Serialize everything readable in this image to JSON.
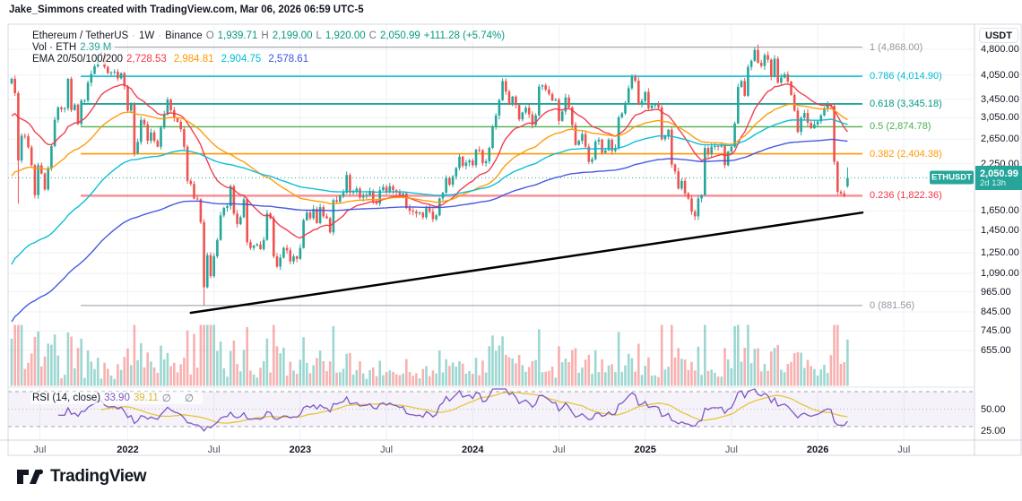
{
  "attribution": "Jake_Simmons created with TradingView.com, Mar 06, 2026 06:59 UTC-5",
  "symbol_row": {
    "title": "Ethereum / TetherUS",
    "dot1": "·",
    "interval": "1W",
    "dot2": "·",
    "exchange": "Binance",
    "o_label": "O",
    "o": "1,939.71",
    "h_label": "H",
    "h": "2,199.00",
    "l_label": "L",
    "l": "1,920.00",
    "c_label": "C",
    "c": "2,050.99",
    "change": "+111.28 (+5.74%)"
  },
  "vol_row": {
    "label": "Vol · ETH",
    "value": "2.39 M",
    "value_color": "#26a69a"
  },
  "ema_row": {
    "label": "EMA 20/50/100/200",
    "values": [
      {
        "text": "2,728.53",
        "color": "#f23645",
        "period": 20
      },
      {
        "text": "2,984.81",
        "color": "#ff9800",
        "period": 50
      },
      {
        "text": "2,904.75",
        "color": "#00bcd4",
        "period": 100
      },
      {
        "text": "2,578.61",
        "color": "#3d51e0",
        "period": 200
      }
    ]
  },
  "rsi_row": {
    "label": "RSI (14, close)",
    "value": "33.90",
    "ma": "39.11",
    "empty": "∅ ∅"
  },
  "price_scale": {
    "currency": "USDT",
    "flag": "ETHUSDT",
    "badge": {
      "price": "2,050.99",
      "countdown": "2d 13h"
    },
    "ticks": [
      {
        "v": 4800,
        "label": "4,800.00"
      },
      {
        "v": 4050,
        "label": "4,050.00"
      },
      {
        "v": 3450,
        "label": "3,450.00"
      },
      {
        "v": 3050,
        "label": "3,050.00"
      },
      {
        "v": 2650,
        "label": "2,650.00"
      },
      {
        "v": 2250,
        "label": "2,250.00"
      },
      {
        "v": 1650,
        "label": "1,650.00"
      },
      {
        "v": 1450,
        "label": "1,450.00"
      },
      {
        "v": 1250,
        "label": "1,250.00"
      },
      {
        "v": 1090,
        "label": "1,090.00"
      },
      {
        "v": 965,
        "label": "965.00"
      },
      {
        "v": 845,
        "label": "845.00"
      },
      {
        "v": 745,
        "label": "745.00"
      },
      {
        "v": 655,
        "label": "655.00"
      }
    ],
    "rsi_ticks": [
      {
        "v": 50,
        "label": "50.00"
      },
      {
        "v": 25,
        "label": "25.00"
      }
    ]
  },
  "time_scale": {
    "ticks": [
      {
        "label": "Jul",
        "week": 8.5,
        "bold": false
      },
      {
        "label": "2022",
        "week": 35,
        "bold": true
      },
      {
        "label": "Jul",
        "week": 61,
        "bold": false
      },
      {
        "label": "2023",
        "week": 87,
        "bold": true
      },
      {
        "label": "Jul",
        "week": 113,
        "bold": false
      },
      {
        "label": "2024",
        "week": 139,
        "bold": true
      },
      {
        "label": "Jul",
        "week": 165,
        "bold": false
      },
      {
        "label": "2025",
        "week": 191,
        "bold": true
      },
      {
        "label": "Jul",
        "week": 217,
        "bold": false
      },
      {
        "label": "2026",
        "week": 243,
        "bold": true
      },
      {
        "label": "Jul",
        "week": 269,
        "bold": false
      }
    ]
  },
  "footer": {
    "brand": "TradingView"
  },
  "chart_data": {
    "type": "candlestick",
    "pair": "ETHUSDT",
    "interval": "1W",
    "exchange": "Binance",
    "scale": "log",
    "last_candle": {
      "open": 1939.71,
      "high": 2199.0,
      "low": 1920.0,
      "close": 2050.99,
      "change": 111.28,
      "change_pct": 5.74
    },
    "last_volume_eth": "2.39 M",
    "up_color": "#26a69a",
    "down_color": "#ef5350",
    "fib_levels": [
      {
        "level": 1,
        "price": 4868.0,
        "label": "1 (4,868.00)",
        "color": "#9598a1",
        "width": 1
      },
      {
        "level": 0.786,
        "price": 4014.9,
        "label": "0.786 (4,014.90)",
        "color": "#00bcd4",
        "width": 1.6
      },
      {
        "level": 0.618,
        "price": 3345.18,
        "label": "0.618 (3,345.18)",
        "color": "#009688",
        "width": 1.6
      },
      {
        "level": 0.5,
        "price": 2874.78,
        "label": "0.5 (2,874.78)",
        "color": "#4caf50",
        "width": 1.4
      },
      {
        "level": 0.382,
        "price": 2404.38,
        "label": "0.382 (2,404.38)",
        "color": "#ff9800",
        "width": 1.6
      },
      {
        "level": 0.236,
        "price": 1822.36,
        "label": "0.236 (1,822.36)",
        "color": "#f23645",
        "width": 2.4,
        "opacity": 0.55
      },
      {
        "level": 0,
        "price": 881.56,
        "label": "0 (881.56)",
        "color": "#9598a1",
        "width": 1
      }
    ],
    "current_price": 2050.99,
    "current_price_color": "#26a69a",
    "trendline": {
      "week1": 54,
      "price1": 840,
      "week2": 256.5,
      "price2": 1630,
      "color": "#000000",
      "width": 2.5
    },
    "rsi": {
      "period": 14,
      "source": "close",
      "value": 33.9,
      "ma": 39.11,
      "upper_band": 70,
      "mid_band": 50,
      "lower_band": 30,
      "line_color": "#7e57c2",
      "ma_color": "#e5c63d",
      "band_fill": "rgba(126,87,194,0.08)"
    },
    "weekly_closes": [
      3950,
      3590,
      2300,
      2710,
      2700,
      2510,
      2230,
      1830,
      2230,
      2110,
      1900,
      2190,
      2530,
      3010,
      3270,
      3230,
      3250,
      3950,
      3210,
      3330,
      2930,
      3420,
      3420,
      3850,
      4080,
      4290,
      4620,
      4640,
      4270,
      4100,
      4120,
      4140,
      3960,
      4100,
      3760,
      3200,
      3330,
      2410,
      2600,
      3010,
      2920,
      2620,
      2770,
      2620,
      2520,
      2860,
      3120,
      3440,
      3210,
      3050,
      2970,
      2830,
      2520,
      2010,
      1970,
      1790,
      1780,
      1530,
      995,
      1230,
      1070,
      1220,
      1360,
      1600,
      1680,
      1700,
      1940,
      1620,
      1510,
      1580,
      1780,
      1340,
      1290,
      1310,
      1320,
      1280,
      1360,
      1620,
      1570,
      1220,
      1140,
      1210,
      1290,
      1270,
      1180,
      1220,
      1200,
      1290,
      1550,
      1630,
      1570,
      1670,
      1520,
      1690,
      1590,
      1570,
      1430,
      1770,
      1750,
      1820,
      1860,
      2090,
      1860,
      1880,
      1910,
      1800,
      1820,
      1830,
      1880,
      1760,
      1730,
      1890,
      1930,
      1870,
      1940,
      1890,
      1870,
      1830,
      1850,
      1680,
      1650,
      1640,
      1620,
      1630,
      1580,
      1680,
      1640,
      1560,
      1600,
      1790,
      1860,
      2050,
      1960,
      2070,
      2190,
      2360,
      2220,
      2270,
      2300,
      2230,
      2470,
      2460,
      2260,
      2290,
      2500,
      2880,
      3100,
      3430,
      3890,
      3630,
      3340,
      3510,
      3320,
      3020,
      3160,
      3260,
      3120,
      2910,
      3100,
      3750,
      3780,
      3680,
      3570,
      3420,
      3440,
      2990,
      3180,
      3490,
      3270,
      2910,
      2550,
      2620,
      2740,
      2520,
      2280,
      2320,
      2610,
      2640,
      2420,
      2460,
      2640,
      2450,
      2500,
      3060,
      3140,
      3370,
      3710,
      4000,
      3900,
      3330,
      3410,
      3620,
      3250,
      3310,
      3330,
      3270,
      2650,
      2700,
      2820,
      2240,
      2140,
      1910,
      2010,
      1850,
      1790,
      1640,
      1590,
      1790,
      1830,
      2500,
      2400,
      2520,
      2530,
      2520,
      2550,
      2230,
      2440,
      2520,
      2940,
      3740,
      3890,
      3530,
      4270,
      4450,
      4780,
      4390,
      4300,
      4620,
      4480,
      4010,
      4510,
      3850,
      3980,
      4070,
      3880,
      3550,
      3200,
      2780,
      3050,
      3150,
      2950,
      2850,
      2920,
      2980,
      3100,
      3250,
      3340,
      3300,
      2280,
      1870,
      1850,
      1820,
      2050.99
    ],
    "candle_overrides": {
      "2": {
        "low": 1728
      },
      "27": {
        "high": 4868
      },
      "58": {
        "low": 881.56
      },
      "225": {
        "high": 4955
      },
      "250": {
        "low": 1822.36
      },
      "252": {
        "open": 1939.71,
        "high": 2199.0,
        "low": 1920.0
      }
    },
    "volume_spikes": [
      [
        0,
        4,
        2.6
      ],
      [
        55,
        61,
        2.0
      ],
      [
        79,
        82,
        1.5
      ],
      [
        144,
        151,
        1.25
      ],
      [
        196,
        202,
        1.35
      ],
      [
        218,
        226,
        1.3
      ],
      [
        247,
        252,
        2.3
      ]
    ]
  }
}
